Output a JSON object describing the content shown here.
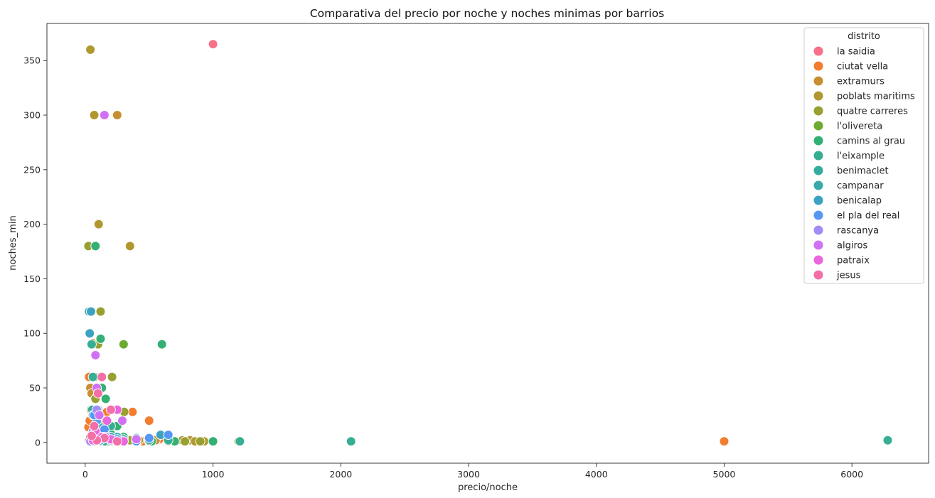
{
  "chart_data": {
    "type": "scatter",
    "title": "Comparativa del precio por noche y noches minimas por barrios",
    "xlabel": "precio/noche",
    "ylabel": "noches_min",
    "xlim": [
      -300,
      6600
    ],
    "ylim": [
      -19,
      384
    ],
    "xticks": [
      0,
      1000,
      2000,
      3000,
      4000,
      5000,
      6000
    ],
    "yticks": [
      0,
      50,
      100,
      150,
      200,
      250,
      300,
      350
    ],
    "grid": false,
    "legend": {
      "title": "distrito",
      "placement": "top-right"
    },
    "series": [
      {
        "name": "la saidia",
        "color": "#f77189",
        "points": [
          [
            1000,
            365
          ],
          [
            60,
            2
          ],
          [
            80,
            3
          ],
          [
            45,
            1
          ],
          [
            120,
            5
          ],
          [
            30,
            2
          ],
          [
            95,
            7
          ],
          [
            150,
            3
          ],
          [
            200,
            2
          ],
          [
            55,
            14
          ],
          [
            70,
            30
          ],
          [
            110,
            4
          ],
          [
            40,
            1
          ],
          [
            300,
            2
          ],
          [
            85,
            1
          ],
          [
            130,
            2
          ]
        ]
      },
      {
        "name": "ciutat vella",
        "color": "#f27d2e",
        "points": [
          [
            5000,
            1
          ],
          [
            60,
            91
          ],
          [
            30,
            60
          ],
          [
            25,
            14
          ],
          [
            170,
            28
          ],
          [
            370,
            28
          ],
          [
            500,
            20
          ],
          [
            85,
            30
          ],
          [
            500,
            1
          ],
          [
            220,
            1
          ],
          [
            310,
            1
          ],
          [
            1000,
            1
          ],
          [
            580,
            3
          ],
          [
            120,
            3
          ],
          [
            60,
            2
          ],
          [
            40,
            5
          ],
          [
            70,
            1
          ],
          [
            90,
            4
          ],
          [
            150,
            2
          ],
          [
            200,
            6
          ],
          [
            450,
            1
          ],
          [
            650,
            1
          ],
          [
            130,
            1
          ],
          [
            35,
            20
          ],
          [
            55,
            3
          ],
          [
            100,
            10
          ]
        ]
      },
      {
        "name": "extramurs",
        "color": "#c78f32",
        "points": [
          [
            250,
            300
          ],
          [
            40,
            50
          ],
          [
            45,
            30
          ],
          [
            75,
            8
          ],
          [
            100,
            4
          ],
          [
            60,
            2
          ],
          [
            150,
            1
          ],
          [
            230,
            3
          ],
          [
            300,
            2
          ],
          [
            120,
            6
          ],
          [
            50,
            45
          ],
          [
            90,
            15
          ],
          [
            180,
            2
          ],
          [
            400,
            1
          ],
          [
            550,
            2
          ],
          [
            80,
            1
          ]
        ]
      },
      {
        "name": "poblats maritims",
        "color": "#b1972f",
        "points": [
          [
            40,
            360
          ],
          [
            70,
            300
          ],
          [
            105,
            200
          ],
          [
            350,
            180
          ],
          [
            75,
            60
          ],
          [
            45,
            30
          ],
          [
            760,
            2
          ],
          [
            930,
            1
          ],
          [
            1200,
            1
          ],
          [
            820,
            2
          ],
          [
            500,
            3
          ],
          [
            300,
            1
          ],
          [
            120,
            5
          ],
          [
            60,
            2
          ],
          [
            90,
            1
          ],
          [
            200,
            4
          ],
          [
            650,
            1
          ],
          [
            420,
            2
          ],
          [
            860,
            1
          ],
          [
            140,
            2
          ]
        ]
      },
      {
        "name": "quatre carreres",
        "color": "#97a030",
        "points": [
          [
            120,
            120
          ],
          [
            25,
            180
          ],
          [
            100,
            90
          ],
          [
            210,
            60
          ],
          [
            80,
            40
          ],
          [
            305,
            28
          ],
          [
            40,
            5
          ],
          [
            70,
            3
          ],
          [
            130,
            2
          ],
          [
            780,
            1
          ],
          [
            900,
            1
          ],
          [
            200,
            1
          ],
          [
            60,
            1
          ],
          [
            350,
            2
          ],
          [
            500,
            1
          ],
          [
            160,
            8
          ],
          [
            220,
            15
          ]
        ]
      },
      {
        "name": "l'olivereta",
        "color": "#6caa31",
        "points": [
          [
            300,
            90
          ],
          [
            150,
            20
          ],
          [
            60,
            3
          ],
          [
            200,
            6
          ],
          [
            90,
            2
          ],
          [
            400,
            1
          ],
          [
            120,
            1
          ],
          [
            250,
            4
          ],
          [
            180,
            12
          ]
        ]
      },
      {
        "name": "camins al grau",
        "color": "#33b072",
        "points": [
          [
            120,
            95
          ],
          [
            80,
            180
          ],
          [
            600,
            90
          ],
          [
            130,
            50
          ],
          [
            160,
            40
          ],
          [
            250,
            15
          ],
          [
            60,
            3
          ],
          [
            700,
            1
          ],
          [
            1000,
            1
          ],
          [
            300,
            5
          ],
          [
            100,
            2
          ],
          [
            200,
            8
          ],
          [
            400,
            2
          ],
          [
            520,
            1
          ],
          [
            180,
            1
          ]
        ]
      },
      {
        "name": "l'eixample",
        "color": "#35ae92",
        "points": [
          [
            6280,
            2
          ],
          [
            2080,
            1
          ],
          [
            1210,
            1
          ],
          [
            50,
            90
          ],
          [
            60,
            60
          ],
          [
            100,
            30
          ],
          [
            200,
            15
          ],
          [
            80,
            5
          ],
          [
            300,
            3
          ],
          [
            500,
            2
          ],
          [
            150,
            1
          ],
          [
            400,
            4
          ],
          [
            650,
            2
          ],
          [
            250,
            1
          ]
        ]
      },
      {
        "name": "benimaclet",
        "color": "#37ab9f",
        "points": [
          [
            55,
            30
          ],
          [
            90,
            15
          ],
          [
            140,
            4
          ],
          [
            200,
            2
          ],
          [
            70,
            1
          ],
          [
            300,
            1
          ],
          [
            110,
            8
          ]
        ]
      },
      {
        "name": "campanar",
        "color": "#39a9ab",
        "points": [
          [
            30,
            120
          ],
          [
            80,
            25
          ],
          [
            150,
            10
          ],
          [
            200,
            3
          ],
          [
            60,
            2
          ],
          [
            400,
            1
          ],
          [
            250,
            5
          ]
        ]
      },
      {
        "name": "benicalap",
        "color": "#3ba3c2",
        "points": [
          [
            45,
            120
          ],
          [
            35,
            100
          ],
          [
            60,
            25
          ],
          [
            100,
            15
          ],
          [
            200,
            5
          ],
          [
            80,
            2
          ],
          [
            300,
            1
          ],
          [
            590,
            7
          ]
        ]
      },
      {
        "name": "el pla del real",
        "color": "#5597f3",
        "points": [
          [
            650,
            7
          ],
          [
            90,
            20
          ],
          [
            70,
            25
          ],
          [
            150,
            12
          ],
          [
            250,
            3
          ],
          [
            400,
            1
          ],
          [
            120,
            2
          ],
          [
            500,
            4
          ]
        ]
      },
      {
        "name": "rascanya",
        "color": "#a18df5",
        "points": [
          [
            90,
            30
          ],
          [
            60,
            10
          ],
          [
            140,
            5
          ],
          [
            200,
            2
          ],
          [
            40,
            1
          ],
          [
            110,
            3
          ]
        ]
      },
      {
        "name": "algiros",
        "color": "#d071f4",
        "points": [
          [
            150,
            300
          ],
          [
            80,
            80
          ],
          [
            290,
            20
          ],
          [
            110,
            25
          ],
          [
            160,
            5
          ],
          [
            60,
            2
          ],
          [
            250,
            1
          ],
          [
            400,
            3
          ],
          [
            90,
            50
          ]
        ]
      },
      {
        "name": "patraix",
        "color": "#eb65dd",
        "points": [
          [
            250,
            30
          ],
          [
            170,
            20
          ],
          [
            80,
            10
          ],
          [
            130,
            5
          ],
          [
            60,
            2
          ],
          [
            300,
            1
          ],
          [
            200,
            3
          ]
        ]
      },
      {
        "name": "jesus",
        "color": "#f46fa7",
        "points": [
          [
            130,
            60
          ],
          [
            100,
            45
          ],
          [
            200,
            30
          ],
          [
            70,
            15
          ],
          [
            150,
            4
          ],
          [
            90,
            2
          ],
          [
            250,
            1
          ],
          [
            50,
            6
          ]
        ]
      }
    ]
  }
}
